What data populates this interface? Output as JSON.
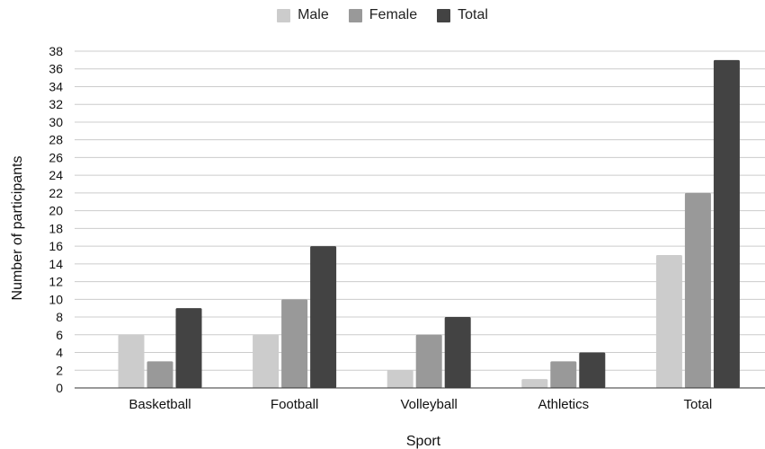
{
  "chart_data": {
    "type": "bar",
    "categories": [
      "Basketball",
      "Football",
      "Volleyball",
      "Athletics",
      "Total"
    ],
    "series": [
      {
        "name": "Male",
        "color": "#cccccc",
        "values": [
          6,
          6,
          2,
          1,
          15
        ]
      },
      {
        "name": "Female",
        "color": "#999999",
        "values": [
          3,
          10,
          6,
          3,
          22
        ]
      },
      {
        "name": "Total",
        "color": "#434343",
        "values": [
          9,
          16,
          8,
          4,
          37
        ]
      }
    ],
    "xlabel": "Sport",
    "ylabel": "Number of participants",
    "ylim": [
      0,
      38
    ],
    "yticks": [
      0,
      2,
      4,
      6,
      8,
      10,
      12,
      14,
      16,
      18,
      20,
      22,
      24,
      26,
      28,
      30,
      32,
      34,
      36,
      38
    ],
    "grid": true,
    "legend_position": "top-center"
  }
}
